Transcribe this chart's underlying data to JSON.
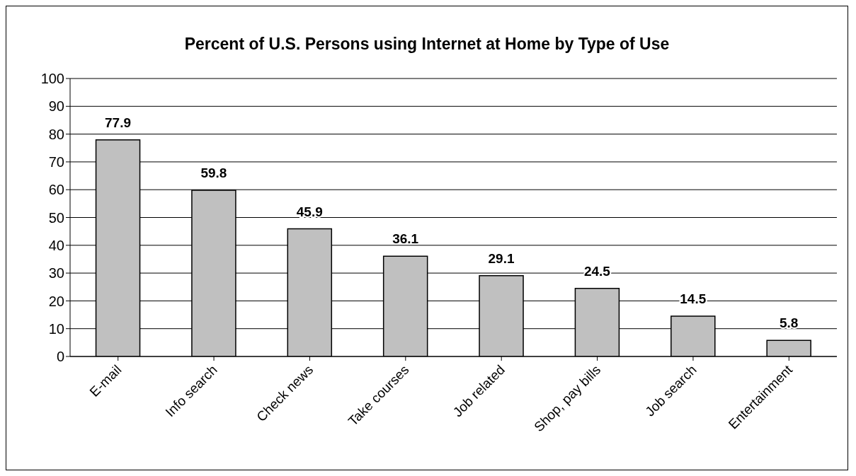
{
  "chart_data": {
    "type": "bar",
    "title": "Percent of U.S. Persons using Internet at Home by Type of Use",
    "categories": [
      "E-mail",
      "Info search",
      "Check news",
      "Take courses",
      "Job related",
      "Shop, pay bills",
      "Job search",
      "Entertainment"
    ],
    "values": [
      77.9,
      59.8,
      45.9,
      36.1,
      29.1,
      24.5,
      14.5,
      5.8
    ],
    "color": "#c0c0c0",
    "ylim": [
      0,
      100
    ],
    "yticks": [
      0,
      10,
      20,
      30,
      40,
      50,
      60,
      70,
      80,
      90,
      100
    ],
    "grid": "y",
    "data_labels": true
  }
}
